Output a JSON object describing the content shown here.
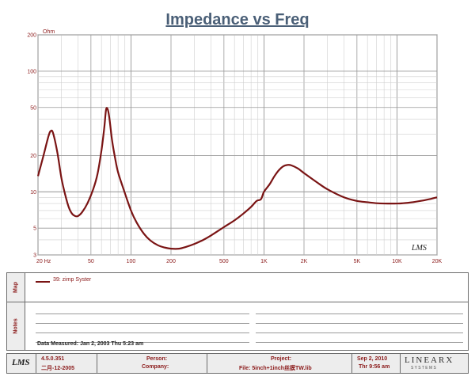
{
  "chart_data": {
    "type": "line",
    "title": "Impedance vs Freq",
    "ylabel": "Ohm",
    "xscale": "log",
    "yscale": "log",
    "xlim": [
      20,
      20000
    ],
    "ylim": [
      3,
      200
    ],
    "x_ticks": [
      {
        "value": 20,
        "label": "20  Hz"
      },
      {
        "value": 50,
        "label": "50"
      },
      {
        "value": 100,
        "label": "100"
      },
      {
        "value": 200,
        "label": "200"
      },
      {
        "value": 500,
        "label": "500"
      },
      {
        "value": 1000,
        "label": "1K"
      },
      {
        "value": 2000,
        "label": "2K"
      },
      {
        "value": 5000,
        "label": "5K"
      },
      {
        "value": 10000,
        "label": "10K"
      },
      {
        "value": 20000,
        "label": "20K"
      }
    ],
    "y_ticks": [
      {
        "value": 200,
        "label": "200"
      },
      {
        "value": 100,
        "label": "100"
      },
      {
        "value": 50,
        "label": "50"
      },
      {
        "value": 20,
        "label": "20"
      },
      {
        "value": 10,
        "label": "10"
      },
      {
        "value": 5,
        "label": "5"
      },
      {
        "value": 3,
        "label": "3"
      }
    ],
    "grid": true,
    "series": [
      {
        "name": "39: zimp Syster",
        "color": "#7a1414",
        "points": [
          [
            20,
            13.5
          ],
          [
            22,
            20
          ],
          [
            24,
            29
          ],
          [
            25,
            32
          ],
          [
            26,
            30.5
          ],
          [
            28,
            21
          ],
          [
            30,
            13
          ],
          [
            32,
            9.5
          ],
          [
            34,
            7.5
          ],
          [
            36,
            6.6
          ],
          [
            38,
            6.3
          ],
          [
            40,
            6.3
          ],
          [
            43,
            6.8
          ],
          [
            47,
            8
          ],
          [
            52,
            10.5
          ],
          [
            56,
            14
          ],
          [
            60,
            22
          ],
          [
            63,
            34
          ],
          [
            65,
            48
          ],
          [
            67,
            48
          ],
          [
            69,
            40
          ],
          [
            72,
            27
          ],
          [
            76,
            19
          ],
          [
            80,
            14.5
          ],
          [
            88,
            10.5
          ],
          [
            100,
            7
          ],
          [
            110,
            5.6
          ],
          [
            125,
            4.5
          ],
          [
            140,
            3.95
          ],
          [
            160,
            3.6
          ],
          [
            180,
            3.45
          ],
          [
            200,
            3.38
          ],
          [
            230,
            3.38
          ],
          [
            260,
            3.5
          ],
          [
            300,
            3.7
          ],
          [
            350,
            4
          ],
          [
            400,
            4.35
          ],
          [
            500,
            5.1
          ],
          [
            600,
            5.8
          ],
          [
            700,
            6.6
          ],
          [
            800,
            7.5
          ],
          [
            880,
            8.4
          ],
          [
            950,
            8.7
          ],
          [
            1000,
            10
          ],
          [
            1100,
            11.5
          ],
          [
            1200,
            13.5
          ],
          [
            1300,
            15.2
          ],
          [
            1400,
            16.3
          ],
          [
            1500,
            16.7
          ],
          [
            1600,
            16.6
          ],
          [
            1800,
            15.6
          ],
          [
            2000,
            14.3
          ],
          [
            2500,
            12
          ],
          [
            3000,
            10.5
          ],
          [
            4000,
            9
          ],
          [
            5000,
            8.4
          ],
          [
            6000,
            8.2
          ],
          [
            7000,
            8.05
          ],
          [
            8000,
            8
          ],
          [
            10000,
            8
          ],
          [
            12000,
            8.1
          ],
          [
            15000,
            8.4
          ],
          [
            18000,
            8.75
          ],
          [
            20000,
            9
          ]
        ]
      }
    ],
    "legend": "bottom-left"
  },
  "watermark": "LMS",
  "panels": {
    "map_label": "Map",
    "notes_label": "Notes",
    "data_measured": "Data Measured: Jan  2, 2003  Thu  5:23 am"
  },
  "footer": {
    "logo": "LMS",
    "version": "4.5.0.351",
    "version_date": "二月-12-2005",
    "person_label": "Person:",
    "company_label": "Company:",
    "project_label": "Project:",
    "file_text": "File: 5inch+1inch丝膜TW.lib",
    "date": "Sep  2, 2010",
    "time": "Thr  9:56 am",
    "brand": "LINEARX",
    "brand_sub": "S Y S T E M S"
  }
}
